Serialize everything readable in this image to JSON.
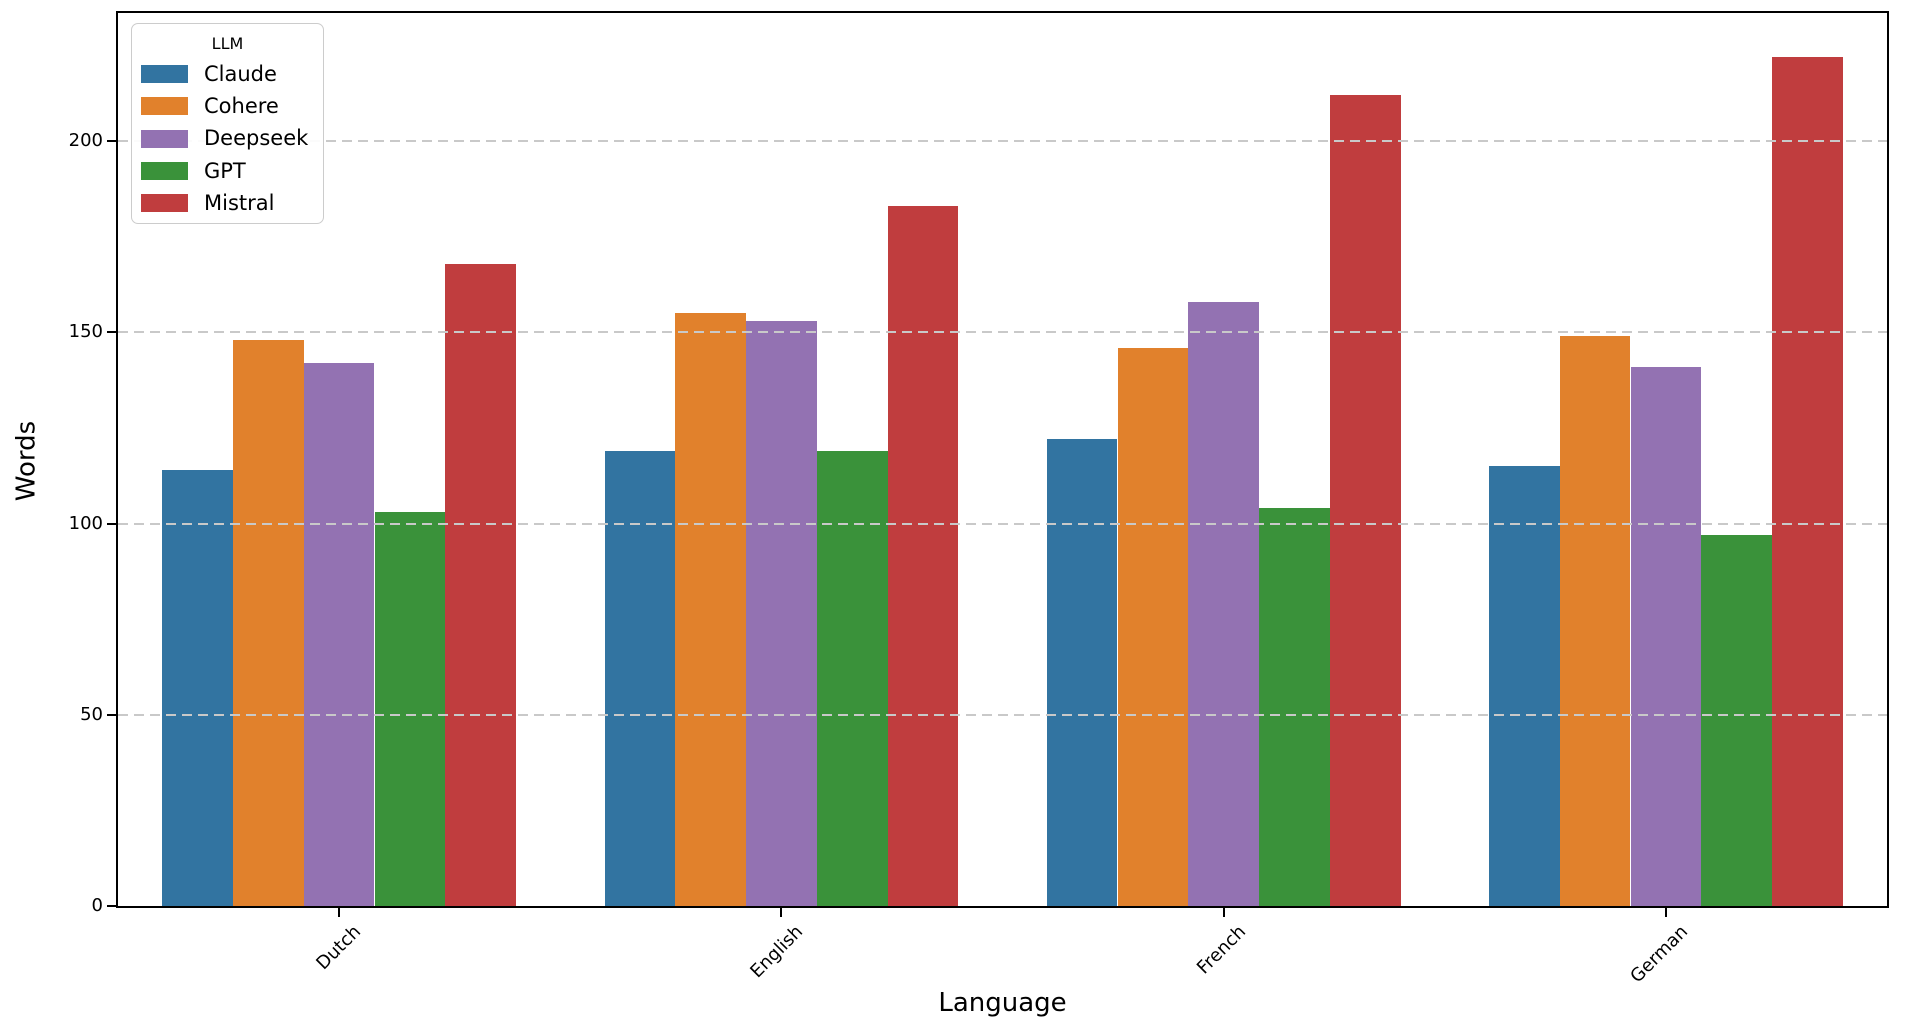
{
  "chart_data": {
    "type": "bar",
    "title": "",
    "xlabel": "Language",
    "ylabel": "Words",
    "categories": [
      "Dutch",
      "English",
      "French",
      "German"
    ],
    "series": [
      {
        "name": "Claude",
        "color": "#3274a1",
        "values": [
          114,
          119,
          122,
          115
        ]
      },
      {
        "name": "Cohere",
        "color": "#e1812c",
        "values": [
          148,
          155,
          146,
          149
        ]
      },
      {
        "name": "Deepseek",
        "color": "#9372b2",
        "values": [
          142,
          153,
          158,
          141
        ]
      },
      {
        "name": "GPT",
        "color": "#3a923a",
        "values": [
          103,
          119,
          104,
          97
        ]
      },
      {
        "name": "Mistral",
        "color": "#c03d3e",
        "values": [
          168,
          183,
          212,
          222
        ]
      }
    ],
    "legend_title": "LLM",
    "legend_position": "upper left",
    "ylim": [
      0,
      233.5
    ],
    "yticks": [
      0,
      50,
      100,
      150,
      200
    ],
    "grid": {
      "axis": "y",
      "style": "dashed",
      "color": "#c9c9c9",
      "on_top_of_bars": true
    },
    "bar_group_fraction": 0.8
  }
}
